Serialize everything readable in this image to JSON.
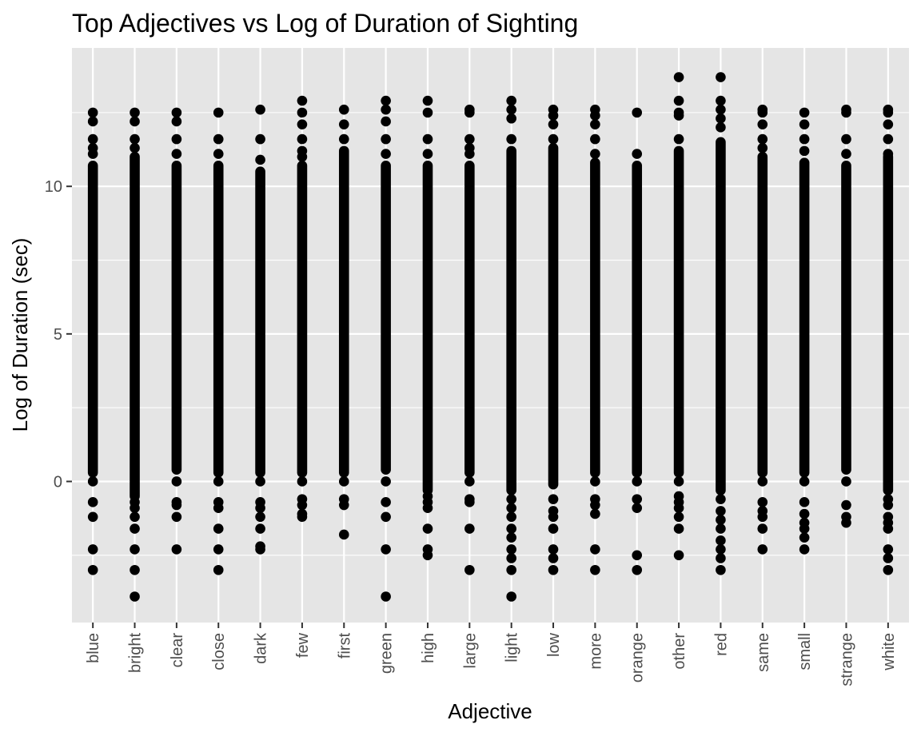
{
  "chart_data": {
    "type": "scatter",
    "title": "Top Adjectives vs Log of Duration of Sighting",
    "xlabel": "Adjective",
    "ylabel": "Log of Duration (sec)",
    "categories": [
      "blue",
      "bright",
      "clear",
      "close",
      "dark",
      "few",
      "first",
      "green",
      "high",
      "large",
      "light",
      "low",
      "more",
      "orange",
      "other",
      "red",
      "same",
      "small",
      "strange",
      "white"
    ],
    "ylim": [
      -4.78,
      14.69
    ],
    "yticks": [
      0,
      5,
      10
    ],
    "ytick_labels": [
      "0",
      "5",
      "10"
    ],
    "grid": true,
    "colors": {
      "panel": "#e5e5e5",
      "grid": "#ffffff",
      "point": "#000000",
      "tick_text": "#4d4d4d"
    },
    "series": [
      {
        "category": "blue",
        "band": [
          0.3,
          10.7
        ],
        "outliers": [
          12.5,
          12.2,
          11.6,
          11.3,
          11.1,
          0.0,
          -0.7,
          -1.2,
          -2.3,
          -3.0
        ]
      },
      {
        "category": "bright",
        "band": [
          -0.5,
          11.0
        ],
        "outliers": [
          12.5,
          12.2,
          11.6,
          11.3,
          -0.7,
          -0.9,
          -1.2,
          -1.6,
          -2.3,
          -3.0,
          -3.9
        ]
      },
      {
        "category": "clear",
        "band": [
          0.4,
          10.7
        ],
        "outliers": [
          12.5,
          12.2,
          11.6,
          11.1,
          0.0,
          -0.7,
          -0.8,
          -1.2,
          -2.3
        ]
      },
      {
        "category": "close",
        "band": [
          0.3,
          10.7
        ],
        "outliers": [
          12.5,
          11.6,
          11.1,
          0.0,
          -0.7,
          -0.9,
          -1.6,
          -2.3,
          -3.0
        ]
      },
      {
        "category": "dark",
        "band": [
          0.3,
          10.5
        ],
        "outliers": [
          12.6,
          11.6,
          10.9,
          0.0,
          -0.7,
          -0.9,
          -1.2,
          -1.6,
          -2.2,
          -2.3
        ]
      },
      {
        "category": "few",
        "band": [
          0.3,
          10.7
        ],
        "outliers": [
          12.9,
          12.5,
          12.1,
          11.6,
          11.2,
          11.0,
          0.0,
          -0.6,
          -0.8,
          -1.1,
          -1.2
        ]
      },
      {
        "category": "first",
        "band": [
          0.3,
          11.2
        ],
        "outliers": [
          12.6,
          12.1,
          11.6,
          0.0,
          -0.6,
          -0.8,
          -1.8
        ]
      },
      {
        "category": "green",
        "band": [
          0.4,
          10.7
        ],
        "outliers": [
          12.9,
          12.6,
          12.2,
          11.6,
          11.1,
          0.0,
          -0.7,
          -1.2,
          -2.3,
          -3.9
        ]
      },
      {
        "category": "high",
        "band": [
          -0.3,
          10.7
        ],
        "outliers": [
          12.9,
          12.5,
          11.6,
          11.1,
          -0.5,
          -0.7,
          -0.9,
          -1.6,
          -2.3,
          -2.5
        ]
      },
      {
        "category": "large",
        "band": [
          0.3,
          10.7
        ],
        "outliers": [
          12.6,
          12.5,
          11.6,
          11.3,
          11.1,
          0.0,
          -0.6,
          -0.7,
          -1.6,
          -3.0
        ]
      },
      {
        "category": "light",
        "band": [
          -0.3,
          11.2
        ],
        "outliers": [
          12.9,
          12.6,
          12.3,
          11.6,
          -0.6,
          -0.9,
          -1.2,
          -1.6,
          -1.9,
          -2.3,
          -2.6,
          -3.0,
          -3.9
        ]
      },
      {
        "category": "low",
        "band": [
          -0.1,
          11.3
        ],
        "outliers": [
          12.6,
          12.4,
          12.1,
          11.6,
          -0.6,
          -1.0,
          -1.2,
          -1.6,
          -2.3,
          -2.6,
          -3.0
        ]
      },
      {
        "category": "more",
        "band": [
          0.3,
          10.8
        ],
        "outliers": [
          12.6,
          12.4,
          12.1,
          11.6,
          11.1,
          0.0,
          -0.6,
          -0.8,
          -1.1,
          -2.3,
          -3.0
        ]
      },
      {
        "category": "orange",
        "band": [
          0.3,
          10.7
        ],
        "outliers": [
          12.5,
          11.1,
          0.0,
          -0.6,
          -0.9,
          -2.5,
          -3.0
        ]
      },
      {
        "category": "other",
        "band": [
          0.3,
          11.2
        ],
        "outliers": [
          13.7,
          12.9,
          12.5,
          12.4,
          11.6,
          0.0,
          -0.5,
          -0.7,
          -0.9,
          -1.2,
          -1.6,
          -2.5
        ]
      },
      {
        "category": "red",
        "band": [
          -0.3,
          11.5
        ],
        "outliers": [
          13.7,
          12.9,
          12.6,
          12.3,
          12.0,
          -0.6,
          -1.0,
          -1.3,
          -1.6,
          -2.0,
          -2.3,
          -2.6,
          -3.0
        ]
      },
      {
        "category": "same",
        "band": [
          0.3,
          11.0
        ],
        "outliers": [
          12.6,
          12.5,
          12.1,
          11.6,
          11.3,
          0.0,
          -0.7,
          -1.0,
          -1.2,
          -1.6,
          -2.3
        ]
      },
      {
        "category": "small",
        "band": [
          0.3,
          10.8
        ],
        "outliers": [
          12.5,
          12.1,
          11.6,
          11.2,
          0.0,
          -0.7,
          -1.1,
          -1.4,
          -1.6,
          -1.9,
          -2.3
        ]
      },
      {
        "category": "strange",
        "band": [
          0.4,
          10.7
        ],
        "outliers": [
          12.6,
          12.5,
          11.6,
          11.1,
          0.0,
          -0.8,
          -1.2,
          -1.4
        ]
      },
      {
        "category": "white",
        "band": [
          -0.3,
          11.0
        ],
        "outliers": [
          12.6,
          12.5,
          12.1,
          11.6,
          11.1,
          -0.6,
          -0.8,
          -1.2,
          -1.4,
          -1.6,
          -2.3,
          -2.6,
          -3.0
        ]
      }
    ]
  }
}
